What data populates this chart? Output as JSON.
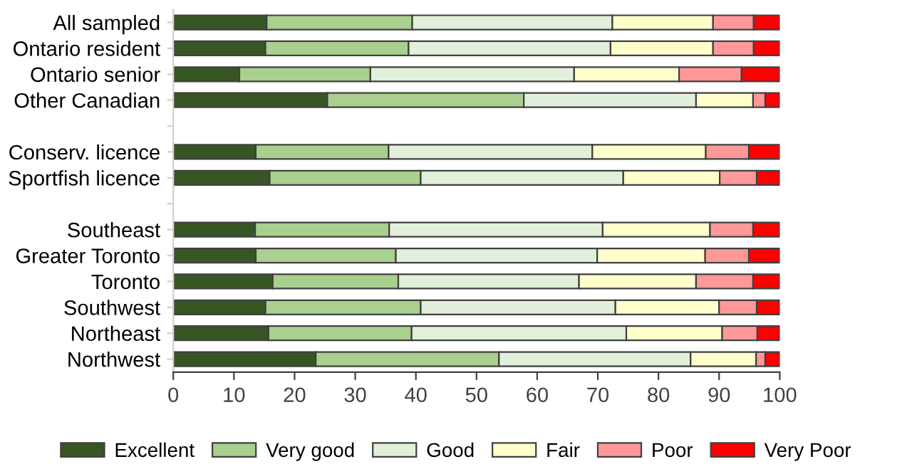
{
  "chart_data": {
    "type": "bar",
    "orientation": "horizontal",
    "stacked": true,
    "categories": [
      "All sampled",
      "Ontario resident",
      "Ontario senior",
      "Other Canadian",
      null,
      "Conserv. licence",
      "Sportfish licence",
      null,
      "Southeast",
      "Greater Toronto",
      "Toronto",
      "Southwest",
      "Northeast",
      "Northwest"
    ],
    "series": [
      {
        "name": "Excellent",
        "color": "#375623",
        "values": [
          15.4,
          15.2,
          10.9,
          25.4,
          null,
          13.6,
          15.9,
          null,
          13.5,
          13.6,
          16.4,
          15.2,
          15.7,
          23.5
        ]
      },
      {
        "name": "Very good",
        "color": "#a9d08e",
        "values": [
          24.0,
          23.6,
          21.6,
          32.4,
          null,
          21.9,
          24.9,
          null,
          22.1,
          23.1,
          20.7,
          25.6,
          23.6,
          30.2
        ]
      },
      {
        "name": "Good",
        "color": "#e2efda",
        "values": [
          33.0,
          33.3,
          33.6,
          28.4,
          null,
          33.6,
          33.4,
          null,
          35.2,
          33.2,
          29.8,
          32.1,
          35.4,
          31.6
        ]
      },
      {
        "name": "Fair",
        "color": "#ffffcc",
        "values": [
          16.6,
          16.9,
          17.3,
          9.4,
          null,
          18.7,
          15.9,
          null,
          17.7,
          17.8,
          19.3,
          17.1,
          15.8,
          10.8
        ]
      },
      {
        "name": "Poor",
        "color": "#ff9999",
        "values": [
          6.7,
          6.7,
          10.3,
          2.0,
          null,
          7.1,
          6.1,
          null,
          7.1,
          7.2,
          9.4,
          6.2,
          5.8,
          1.5
        ]
      },
      {
        "name": "Very Poor",
        "color": "#ff0000",
        "values": [
          4.3,
          4.3,
          6.3,
          2.4,
          null,
          5.1,
          3.8,
          null,
          4.4,
          5.1,
          4.4,
          3.8,
          3.7,
          2.4
        ]
      }
    ],
    "xlim": [
      0,
      100
    ],
    "xticks": [
      0,
      10,
      20,
      30,
      40,
      50,
      60,
      70,
      80,
      90,
      100
    ],
    "grid": false,
    "legend": "bottom"
  }
}
